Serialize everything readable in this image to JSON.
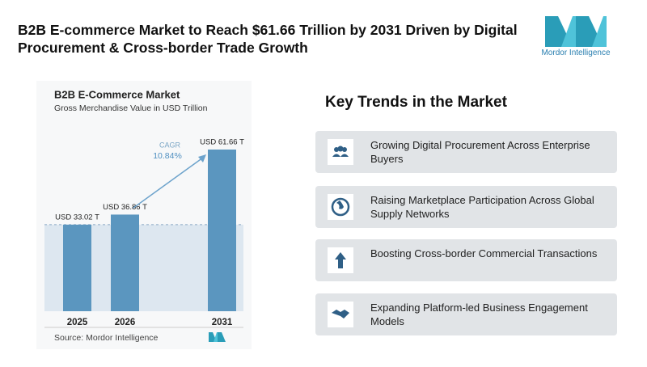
{
  "header": {
    "title": "B2B E-commerce Market to Reach $61.66 Trillion by 2031 Driven by Digital Procurement & Cross-border Trade Growth",
    "brand": "Mordor Intelligence"
  },
  "chart_data": {
    "type": "bar",
    "title": "B2B E-Commerce Market",
    "subtitle": "Gross Merchandise Value in USD Trillion",
    "categories": [
      "2025",
      "2026",
      "2031"
    ],
    "values": [
      33.02,
      36.86,
      61.66
    ],
    "value_labels": [
      "USD 33.02 T",
      "USD 36.86 T",
      "USD 61.66 T"
    ],
    "color": "#5b96bf",
    "annotation": {
      "title": "CAGR",
      "text": "10.84%"
    },
    "source": "Source: Mordor Intelligence"
  },
  "trends": {
    "title": "Key Trends in the Market",
    "items": [
      "Growing Digital Procurement Across Enterprise Buyers",
      "Raising Marketplace Participation Across Global Supply Networks",
      "Boosting Cross-border Commercial Transactions",
      "Expanding Platform-led Business Engagement Models"
    ]
  }
}
